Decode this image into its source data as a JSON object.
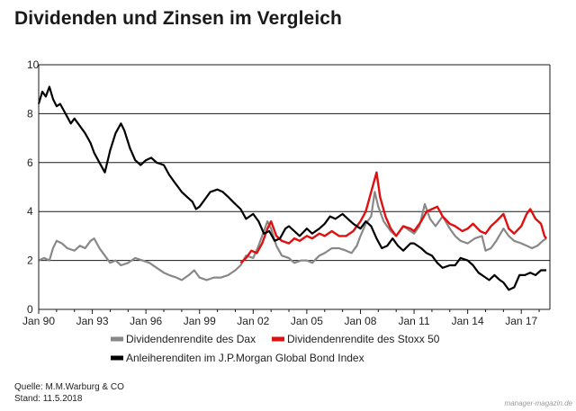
{
  "title": "Dividenden und Zinsen im Vergleich",
  "source": "Quelle: M.M.Warburg & CO",
  "stand": "Stand: 11.5.2018",
  "watermark": "manager-magazin.de",
  "chart_data": {
    "type": "line",
    "title": "Dividenden und Zinsen im Vergleich",
    "xlabel": "",
    "ylabel": "",
    "xlim": [
      1990.0,
      2018.6
    ],
    "ylim": [
      0,
      10
    ],
    "yticks": [
      0,
      2,
      4,
      6,
      8,
      10
    ],
    "xticks": [
      {
        "value": 1990,
        "label": "Jan 90"
      },
      {
        "value": 1993,
        "label": "Jan 93"
      },
      {
        "value": 1996,
        "label": "Jan 96"
      },
      {
        "value": 1999,
        "label": "Jan 99"
      },
      {
        "value": 2002,
        "label": "Jan 02"
      },
      {
        "value": 2005,
        "label": "Jan 05"
      },
      {
        "value": 2008,
        "label": "Jan 08"
      },
      {
        "value": 2011,
        "label": "Jan 11"
      },
      {
        "value": 2014,
        "label": "Jan 14"
      },
      {
        "value": 2017,
        "label": "Jan 17"
      }
    ],
    "grid": "horizontal",
    "legend_position": "bottom",
    "series": [
      {
        "name": "Dividendenrendite des Dax",
        "color": "#888888",
        "points": [
          [
            1990.0,
            2.0
          ],
          [
            1990.3,
            2.1
          ],
          [
            1990.6,
            2.0
          ],
          [
            1990.8,
            2.5
          ],
          [
            1991.0,
            2.8
          ],
          [
            1991.3,
            2.7
          ],
          [
            1991.6,
            2.5
          ],
          [
            1992.0,
            2.4
          ],
          [
            1992.3,
            2.6
          ],
          [
            1992.6,
            2.5
          ],
          [
            1992.9,
            2.8
          ],
          [
            1993.1,
            2.9
          ],
          [
            1993.4,
            2.5
          ],
          [
            1993.7,
            2.2
          ],
          [
            1994.0,
            1.9
          ],
          [
            1994.3,
            2.0
          ],
          [
            1994.6,
            1.8
          ],
          [
            1995.0,
            1.9
          ],
          [
            1995.4,
            2.1
          ],
          [
            1995.8,
            2.0
          ],
          [
            1996.2,
            1.9
          ],
          [
            1996.6,
            1.7
          ],
          [
            1997.0,
            1.5
          ],
          [
            1997.3,
            1.4
          ],
          [
            1997.7,
            1.3
          ],
          [
            1998.0,
            1.2
          ],
          [
            1998.4,
            1.4
          ],
          [
            1998.7,
            1.6
          ],
          [
            1999.0,
            1.3
          ],
          [
            1999.4,
            1.2
          ],
          [
            1999.8,
            1.3
          ],
          [
            2000.2,
            1.3
          ],
          [
            2000.6,
            1.4
          ],
          [
            2001.0,
            1.6
          ],
          [
            2001.3,
            1.8
          ],
          [
            2001.6,
            2.2
          ],
          [
            2002.0,
            2.1
          ],
          [
            2002.3,
            2.6
          ],
          [
            2002.6,
            3.2
          ],
          [
            2002.8,
            3.6
          ],
          [
            2003.0,
            3.3
          ],
          [
            2003.3,
            2.6
          ],
          [
            2003.6,
            2.2
          ],
          [
            2004.0,
            2.1
          ],
          [
            2004.3,
            1.9
          ],
          [
            2004.7,
            2.0
          ],
          [
            2005.0,
            2.0
          ],
          [
            2005.3,
            1.9
          ],
          [
            2005.7,
            2.2
          ],
          [
            2006.0,
            2.3
          ],
          [
            2006.4,
            2.5
          ],
          [
            2006.8,
            2.5
          ],
          [
            2007.2,
            2.4
          ],
          [
            2007.5,
            2.3
          ],
          [
            2007.8,
            2.6
          ],
          [
            2008.0,
            3.0
          ],
          [
            2008.3,
            3.5
          ],
          [
            2008.6,
            3.8
          ],
          [
            2008.8,
            4.8
          ],
          [
            2009.0,
            4.2
          ],
          [
            2009.3,
            3.6
          ],
          [
            2009.7,
            3.2
          ],
          [
            2010.0,
            3.0
          ],
          [
            2010.4,
            3.4
          ],
          [
            2010.8,
            3.2
          ],
          [
            2011.0,
            3.1
          ],
          [
            2011.3,
            3.4
          ],
          [
            2011.6,
            4.3
          ],
          [
            2011.9,
            3.7
          ],
          [
            2012.2,
            3.4
          ],
          [
            2012.6,
            3.8
          ],
          [
            2013.0,
            3.3
          ],
          [
            2013.3,
            3.0
          ],
          [
            2013.6,
            2.8
          ],
          [
            2014.0,
            2.7
          ],
          [
            2014.4,
            2.9
          ],
          [
            2014.8,
            3.0
          ],
          [
            2015.0,
            2.4
          ],
          [
            2015.3,
            2.5
          ],
          [
            2015.6,
            2.8
          ],
          [
            2016.0,
            3.3
          ],
          [
            2016.3,
            3.0
          ],
          [
            2016.6,
            2.8
          ],
          [
            2017.0,
            2.7
          ],
          [
            2017.3,
            2.6
          ],
          [
            2017.6,
            2.5
          ],
          [
            2017.9,
            2.6
          ],
          [
            2018.2,
            2.8
          ],
          [
            2018.4,
            2.9
          ]
        ]
      },
      {
        "name": "Dividendenrendite des Stoxx 50",
        "color": "#e01010",
        "points": [
          [
            2001.3,
            1.9
          ],
          [
            2001.6,
            2.1
          ],
          [
            2001.9,
            2.4
          ],
          [
            2002.2,
            2.3
          ],
          [
            2002.5,
            2.7
          ],
          [
            2002.8,
            3.3
          ],
          [
            2003.0,
            3.6
          ],
          [
            2003.3,
            3.0
          ],
          [
            2003.6,
            2.8
          ],
          [
            2004.0,
            2.7
          ],
          [
            2004.3,
            2.9
          ],
          [
            2004.6,
            2.8
          ],
          [
            2005.0,
            3.0
          ],
          [
            2005.3,
            2.9
          ],
          [
            2005.7,
            3.1
          ],
          [
            2006.0,
            3.0
          ],
          [
            2006.4,
            3.2
          ],
          [
            2006.8,
            3.0
          ],
          [
            2007.2,
            3.0
          ],
          [
            2007.6,
            3.2
          ],
          [
            2008.0,
            3.6
          ],
          [
            2008.3,
            4.0
          ],
          [
            2008.6,
            4.8
          ],
          [
            2008.9,
            5.6
          ],
          [
            2009.1,
            4.6
          ],
          [
            2009.4,
            3.8
          ],
          [
            2009.7,
            3.3
          ],
          [
            2010.0,
            3.0
          ],
          [
            2010.4,
            3.4
          ],
          [
            2010.8,
            3.3
          ],
          [
            2011.0,
            3.2
          ],
          [
            2011.4,
            3.6
          ],
          [
            2011.7,
            4.0
          ],
          [
            2012.0,
            4.1
          ],
          [
            2012.3,
            4.2
          ],
          [
            2012.6,
            3.8
          ],
          [
            2013.0,
            3.5
          ],
          [
            2013.3,
            3.4
          ],
          [
            2013.7,
            3.2
          ],
          [
            2014.0,
            3.3
          ],
          [
            2014.3,
            3.5
          ],
          [
            2014.7,
            3.2
          ],
          [
            2015.0,
            3.1
          ],
          [
            2015.3,
            3.4
          ],
          [
            2015.6,
            3.6
          ],
          [
            2016.0,
            3.9
          ],
          [
            2016.3,
            3.3
          ],
          [
            2016.6,
            3.1
          ],
          [
            2017.0,
            3.4
          ],
          [
            2017.3,
            3.9
          ],
          [
            2017.5,
            4.1
          ],
          [
            2017.8,
            3.7
          ],
          [
            2018.1,
            3.5
          ],
          [
            2018.3,
            3.0
          ],
          [
            2018.4,
            2.9
          ]
        ]
      },
      {
        "name": "Anleiherenditen im J.P.Morgan Global Bond Index",
        "color": "#000000",
        "points": [
          [
            1990.0,
            8.4
          ],
          [
            1990.2,
            8.9
          ],
          [
            1990.4,
            8.7
          ],
          [
            1990.6,
            9.1
          ],
          [
            1990.8,
            8.6
          ],
          [
            1991.0,
            8.3
          ],
          [
            1991.2,
            8.4
          ],
          [
            1991.5,
            8.0
          ],
          [
            1991.8,
            7.6
          ],
          [
            1992.0,
            7.8
          ],
          [
            1992.3,
            7.5
          ],
          [
            1992.6,
            7.2
          ],
          [
            1992.9,
            6.8
          ],
          [
            1993.1,
            6.4
          ],
          [
            1993.4,
            6.0
          ],
          [
            1993.7,
            5.6
          ],
          [
            1994.0,
            6.5
          ],
          [
            1994.3,
            7.2
          ],
          [
            1994.6,
            7.6
          ],
          [
            1994.8,
            7.3
          ],
          [
            1995.1,
            6.6
          ],
          [
            1995.4,
            6.1
          ],
          [
            1995.7,
            5.9
          ],
          [
            1996.0,
            6.1
          ],
          [
            1996.3,
            6.2
          ],
          [
            1996.6,
            6.0
          ],
          [
            1997.0,
            5.9
          ],
          [
            1997.3,
            5.5
          ],
          [
            1997.6,
            5.2
          ],
          [
            1998.0,
            4.8
          ],
          [
            1998.3,
            4.6
          ],
          [
            1998.6,
            4.4
          ],
          [
            1998.8,
            4.1
          ],
          [
            1999.0,
            4.2
          ],
          [
            1999.3,
            4.5
          ],
          [
            1999.6,
            4.8
          ],
          [
            2000.0,
            4.9
          ],
          [
            2000.3,
            4.8
          ],
          [
            2000.6,
            4.6
          ],
          [
            2001.0,
            4.3
          ],
          [
            2001.3,
            4.1
          ],
          [
            2001.6,
            3.7
          ],
          [
            2002.0,
            3.9
          ],
          [
            2002.3,
            3.6
          ],
          [
            2002.6,
            3.1
          ],
          [
            2002.9,
            3.2
          ],
          [
            2003.2,
            2.8
          ],
          [
            2003.5,
            2.9
          ],
          [
            2003.8,
            3.3
          ],
          [
            2004.0,
            3.4
          ],
          [
            2004.3,
            3.2
          ],
          [
            2004.6,
            3.0
          ],
          [
            2005.0,
            3.3
          ],
          [
            2005.3,
            3.1
          ],
          [
            2005.7,
            3.3
          ],
          [
            2006.0,
            3.5
          ],
          [
            2006.3,
            3.8
          ],
          [
            2006.6,
            3.7
          ],
          [
            2007.0,
            3.9
          ],
          [
            2007.3,
            3.7
          ],
          [
            2007.6,
            3.5
          ],
          [
            2008.0,
            3.3
          ],
          [
            2008.3,
            3.6
          ],
          [
            2008.6,
            3.4
          ],
          [
            2008.9,
            2.9
          ],
          [
            2009.2,
            2.5
          ],
          [
            2009.5,
            2.6
          ],
          [
            2009.8,
            2.9
          ],
          [
            2010.1,
            2.6
          ],
          [
            2010.4,
            2.4
          ],
          [
            2010.8,
            2.7
          ],
          [
            2011.0,
            2.7
          ],
          [
            2011.4,
            2.5
          ],
          [
            2011.7,
            2.3
          ],
          [
            2012.0,
            2.2
          ],
          [
            2012.3,
            1.9
          ],
          [
            2012.6,
            1.7
          ],
          [
            2013.0,
            1.8
          ],
          [
            2013.3,
            1.8
          ],
          [
            2013.6,
            2.1
          ],
          [
            2014.0,
            2.0
          ],
          [
            2014.3,
            1.8
          ],
          [
            2014.6,
            1.5
          ],
          [
            2015.0,
            1.3
          ],
          [
            2015.2,
            1.2
          ],
          [
            2015.5,
            1.4
          ],
          [
            2015.8,
            1.2
          ],
          [
            2016.0,
            1.1
          ],
          [
            2016.3,
            0.8
          ],
          [
            2016.6,
            0.9
          ],
          [
            2016.9,
            1.4
          ],
          [
            2017.2,
            1.4
          ],
          [
            2017.5,
            1.5
          ],
          [
            2017.8,
            1.4
          ],
          [
            2018.1,
            1.6
          ],
          [
            2018.4,
            1.6
          ]
        ]
      }
    ]
  }
}
